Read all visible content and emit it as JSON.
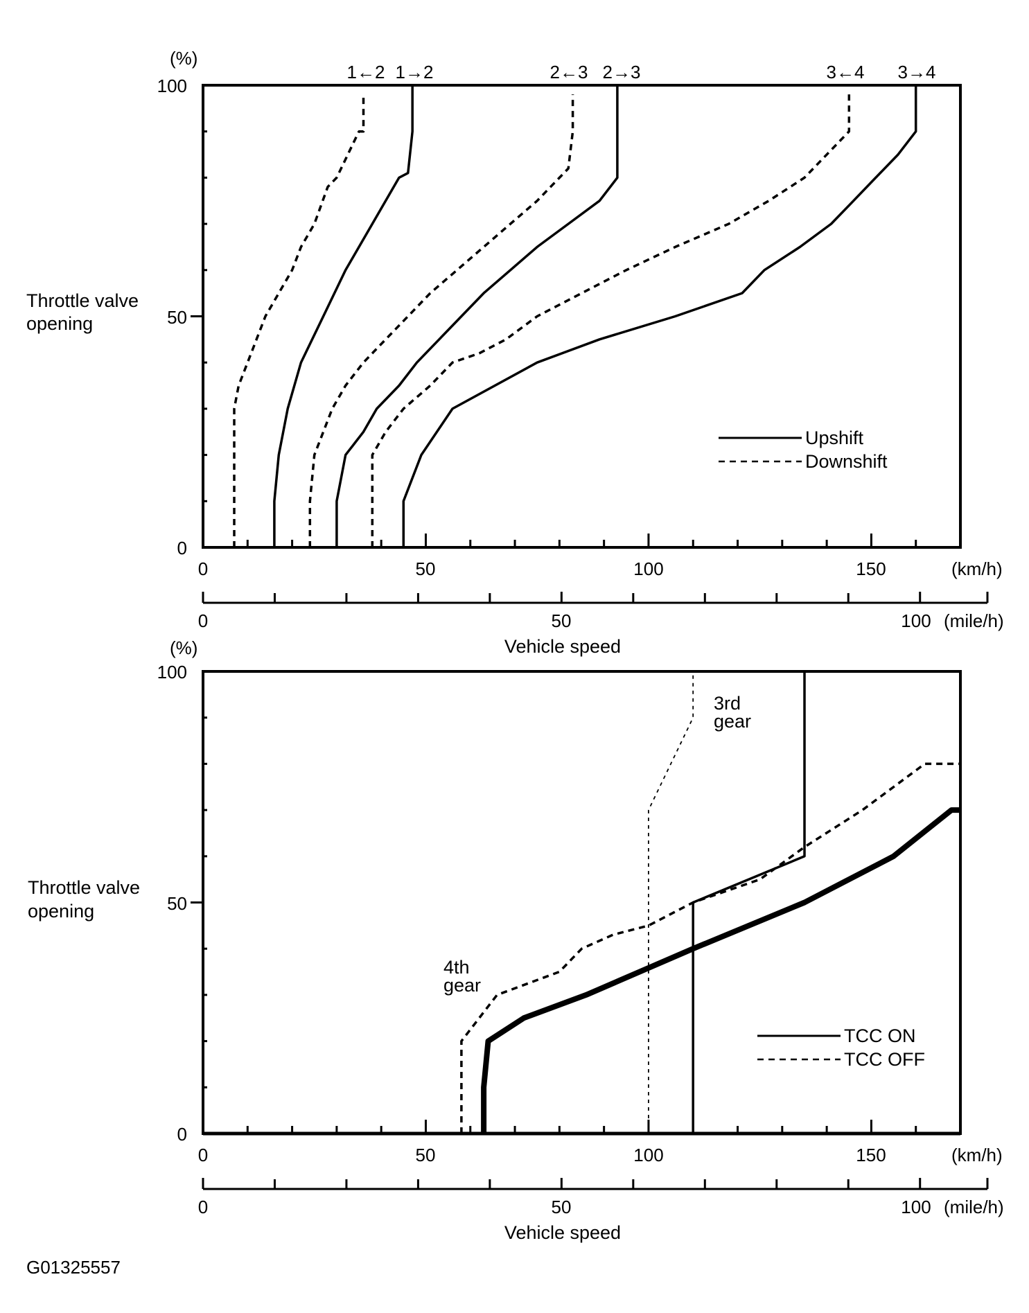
{
  "figure_code": "G01325557",
  "chart_data": [
    {
      "type": "line",
      "y_unit": "(%)",
      "ylabel_line1": "Throttle valve",
      "ylabel_line2": "opening",
      "xlabel": "Vehicle speed",
      "x_unit": "(km/h)",
      "x2_unit": "(mile/h)",
      "xlim": [
        0,
        170
      ],
      "ylim": [
        0,
        100
      ],
      "x_ticks": [
        0,
        50,
        100,
        150
      ],
      "y_ticks": [
        0,
        50,
        100
      ],
      "x2_ticks": [
        0,
        50,
        100
      ],
      "legend": {
        "position": "lower-right",
        "items": [
          {
            "label": "Upshift",
            "style": "solid"
          },
          {
            "label": "Downshift",
            "style": "dashed"
          }
        ]
      },
      "series": [
        {
          "name": "1→2",
          "style": "solid",
          "points": [
            [
              16,
              0
            ],
            [
              16,
              10
            ],
            [
              17,
              20
            ],
            [
              19,
              30
            ],
            [
              22,
              40
            ],
            [
              27,
              50
            ],
            [
              32,
              60
            ],
            [
              38,
              70
            ],
            [
              44,
              80
            ],
            [
              46,
              81
            ],
            [
              47,
              90
            ],
            [
              47,
              100
            ]
          ]
        },
        {
          "name": "1←2",
          "style": "dashed",
          "points": [
            [
              7,
              0
            ],
            [
              7,
              10
            ],
            [
              7,
              20
            ],
            [
              7,
              30
            ],
            [
              8,
              35
            ],
            [
              10,
              40
            ],
            [
              12,
              45
            ],
            [
              14,
              50
            ],
            [
              17,
              55
            ],
            [
              20,
              60
            ],
            [
              22,
              65
            ],
            [
              25,
              70
            ],
            [
              28,
              78
            ],
            [
              30,
              80
            ],
            [
              35,
              90
            ],
            [
              36,
              90
            ],
            [
              36,
              98
            ]
          ]
        },
        {
          "name": "2→3",
          "style": "solid",
          "points": [
            [
              30,
              0
            ],
            [
              30,
              10
            ],
            [
              32,
              20
            ],
            [
              36,
              25
            ],
            [
              39,
              30
            ],
            [
              44,
              35
            ],
            [
              48,
              40
            ],
            [
              53,
              45
            ],
            [
              58,
              50
            ],
            [
              63,
              55
            ],
            [
              69,
              60
            ],
            [
              75,
              65
            ],
            [
              82,
              70
            ],
            [
              89,
              75
            ],
            [
              93,
              80
            ],
            [
              93,
              100
            ]
          ]
        },
        {
          "name": "2←3",
          "style": "dashed",
          "points": [
            [
              24,
              0
            ],
            [
              24,
              10
            ],
            [
              25,
              20
            ],
            [
              29,
              30
            ],
            [
              32,
              35
            ],
            [
              36,
              40
            ],
            [
              41,
              45
            ],
            [
              46,
              50
            ],
            [
              51,
              55
            ],
            [
              57,
              60
            ],
            [
              63,
              65
            ],
            [
              69,
              70
            ],
            [
              75,
              75
            ],
            [
              80,
              80
            ],
            [
              82,
              82
            ],
            [
              83,
              90
            ],
            [
              83,
              98
            ]
          ]
        },
        {
          "name": "3→4",
          "style": "solid",
          "points": [
            [
              45,
              0
            ],
            [
              45,
              10
            ],
            [
              49,
              20
            ],
            [
              56,
              30
            ],
            [
              75,
              40
            ],
            [
              89,
              45
            ],
            [
              106,
              50
            ],
            [
              121,
              55
            ],
            [
              126,
              60
            ],
            [
              134,
              65
            ],
            [
              141,
              70
            ],
            [
              146,
              75
            ],
            [
              151,
              80
            ],
            [
              156,
              85
            ],
            [
              160,
              90
            ],
            [
              160,
              100
            ]
          ]
        },
        {
          "name": "3←4",
          "style": "dashed",
          "points": [
            [
              38,
              0
            ],
            [
              38,
              10
            ],
            [
              38,
              20
            ],
            [
              41,
              25
            ],
            [
              45,
              30
            ],
            [
              51,
              35
            ],
            [
              56,
              40
            ],
            [
              62,
              42
            ],
            [
              68,
              45
            ],
            [
              75,
              50
            ],
            [
              85,
              55
            ],
            [
              95,
              60
            ],
            [
              106,
              65
            ],
            [
              118,
              70
            ],
            [
              127,
              75
            ],
            [
              135,
              80
            ],
            [
              145,
              90
            ],
            [
              145,
              98
            ]
          ]
        }
      ],
      "annotations": [
        {
          "text": "1←2",
          "x": 36
        },
        {
          "text": "1→2",
          "x": 47
        },
        {
          "text": "2←3",
          "x": 83
        },
        {
          "text": "2→3",
          "x": 93
        },
        {
          "text": "3←4",
          "x": 145
        },
        {
          "text": "3→4",
          "x": 160
        }
      ]
    },
    {
      "type": "line",
      "y_unit": "(%)",
      "ylabel_line1": "Throttle valve",
      "ylabel_line2": "opening",
      "xlabel": "Vehicle speed",
      "x_unit": "(km/h)",
      "x2_unit": "(mile/h)",
      "xlim": [
        0,
        170
      ],
      "ylim": [
        0,
        100
      ],
      "x_ticks": [
        0,
        50,
        100,
        150
      ],
      "y_ticks": [
        0,
        50,
        100
      ],
      "x2_ticks": [
        0,
        50,
        100
      ],
      "legend": {
        "position": "lower-right",
        "items": [
          {
            "label": "TCC ON",
            "style": "solid"
          },
          {
            "label": "TCC OFF",
            "style": "dashed"
          }
        ]
      },
      "series": [
        {
          "name": "4th gear TCC ON",
          "style": "solid-thick",
          "points": [
            [
              63,
              0
            ],
            [
              63,
              10
            ],
            [
              64,
              20
            ],
            [
              72,
              25
            ],
            [
              86,
              30
            ],
            [
              110,
              40
            ],
            [
              135,
              50
            ],
            [
              155,
              60
            ],
            [
              168,
              70
            ],
            [
              170,
              70
            ]
          ]
        },
        {
          "name": "4th gear TCC OFF",
          "style": "dashed",
          "points": [
            [
              58,
              0
            ],
            [
              58,
              20
            ],
            [
              62,
              25
            ],
            [
              66,
              30
            ],
            [
              80,
              35
            ],
            [
              85,
              40
            ],
            [
              92,
              43
            ],
            [
              100,
              45
            ],
            [
              110,
              50
            ],
            [
              125,
              55
            ],
            [
              135,
              62
            ],
            [
              148,
              70
            ],
            [
              162,
              80
            ],
            [
              170,
              80
            ]
          ]
        },
        {
          "name": "3rd gear TCC ON",
          "style": "solid",
          "points": [
            [
              110,
              0
            ],
            [
              110,
              50
            ],
            [
              135,
              60
            ],
            [
              135,
              100
            ]
          ]
        },
        {
          "name": "3rd gear TCC OFF",
          "style": "dashed-thin",
          "points": [
            [
              100,
              0
            ],
            [
              100,
              70
            ],
            [
              105,
              80
            ],
            [
              110,
              90
            ],
            [
              110,
              100
            ]
          ]
        }
      ],
      "annotations": [
        {
          "text_line1": "3rd",
          "text_line2": "gear",
          "x": 115,
          "y": 93
        },
        {
          "text_line1": "4th",
          "text_line2": "gear",
          "x": 54,
          "y": 34
        }
      ]
    }
  ]
}
